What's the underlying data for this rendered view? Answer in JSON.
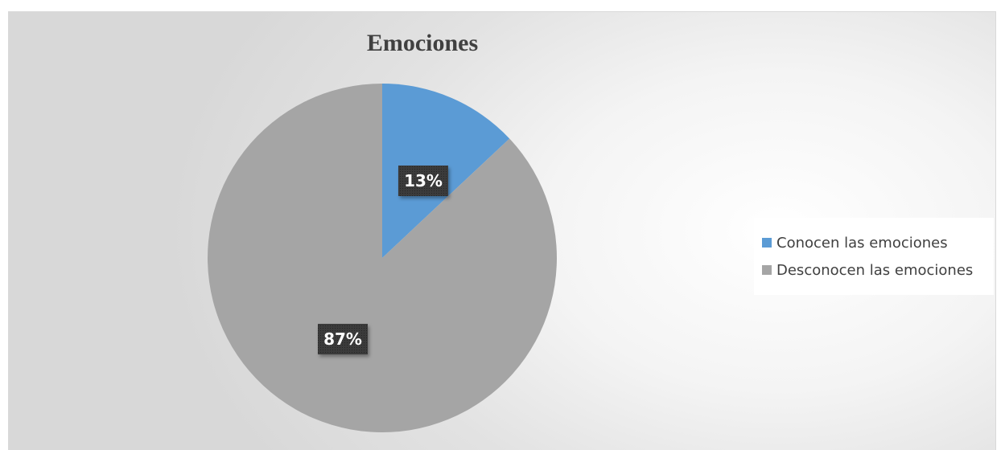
{
  "chart_data": {
    "type": "pie",
    "title": "Emociones",
    "categories": [
      "Conocen las emociones",
      "Desconocen las emociones"
    ],
    "values": [
      13,
      87
    ],
    "labels": [
      "13%",
      "87%"
    ],
    "colors": [
      "#5b9bd5",
      "#a5a5a5"
    ],
    "legend_position": "right",
    "start_angle": "top"
  }
}
